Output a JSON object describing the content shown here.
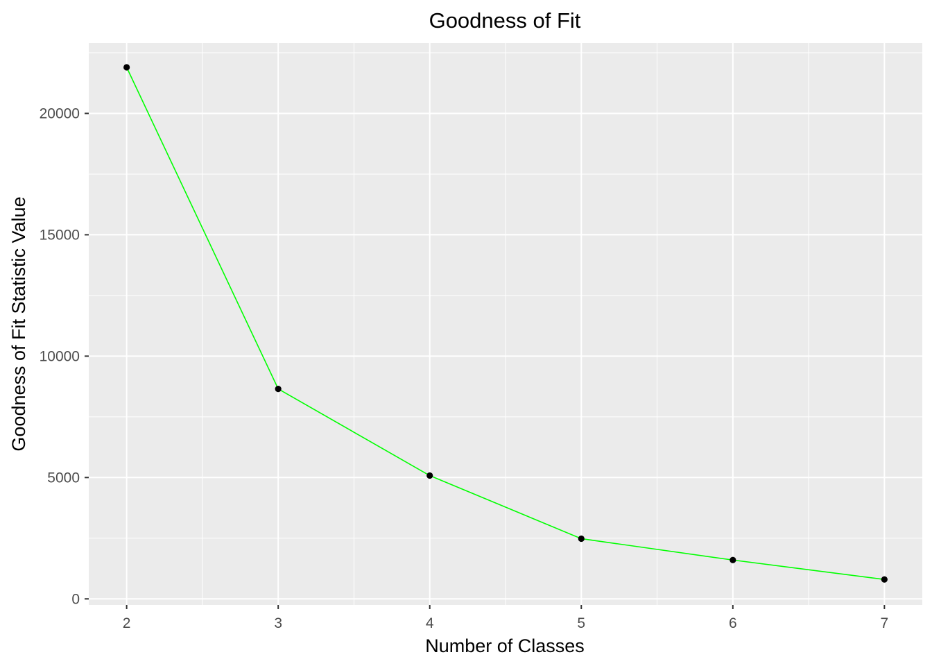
{
  "chart_data": {
    "type": "line",
    "title": "Goodness of Fit",
    "xlabel": "Number of Classes",
    "ylabel": "Goodness of Fit Statistic Value",
    "x": [
      2,
      3,
      4,
      5,
      6,
      7
    ],
    "series": [
      {
        "values": [
          21900,
          8650,
          5080,
          2480,
          1600,
          800
        ],
        "line_color": "#00ff00",
        "point_color": "#000000"
      }
    ],
    "xlim": [
      1.75,
      7.25
    ],
    "ylim": [
      -250,
      22900
    ],
    "x_ticks": [
      2,
      3,
      4,
      5,
      6,
      7
    ],
    "x_tick_labels": [
      "2",
      "3",
      "4",
      "5",
      "6",
      "7"
    ],
    "y_ticks": [
      0,
      5000,
      10000,
      15000,
      20000
    ],
    "y_tick_labels": [
      "0",
      "5000",
      "10000",
      "15000",
      "20000"
    ],
    "grid": true,
    "legend": "none",
    "panel_background": "#ebebeb",
    "grid_color": "#ffffff"
  }
}
